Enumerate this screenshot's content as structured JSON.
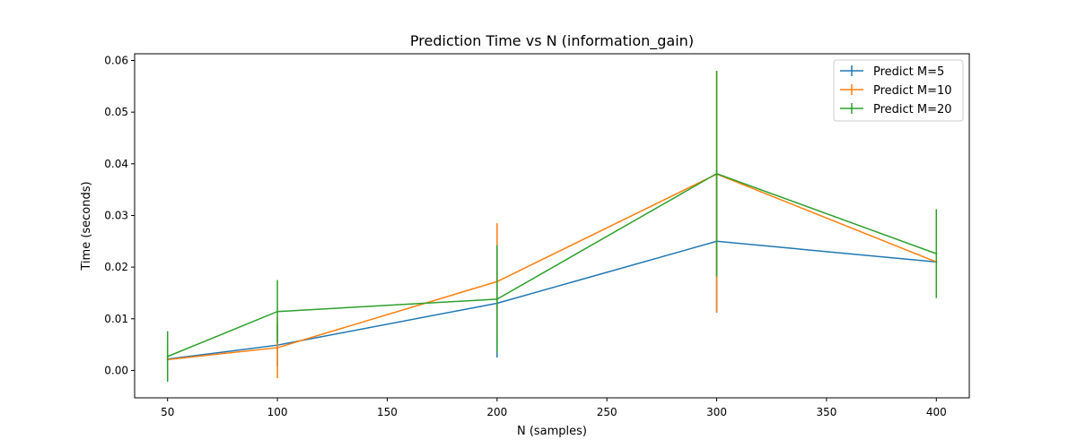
{
  "chart_data": {
    "type": "line",
    "title": "Prediction Time vs N (information_gain)",
    "xlabel": "N (samples)",
    "ylabel": "Time (seconds)",
    "xlim": [
      35,
      415
    ],
    "ylim": [
      -0.0053,
      0.0613
    ],
    "x_ticks": [
      50,
      100,
      150,
      200,
      250,
      300,
      350,
      400
    ],
    "y_ticks": [
      0.0,
      0.01,
      0.02,
      0.03,
      0.04,
      0.05,
      0.06
    ],
    "x_tick_labels": [
      "50",
      "100",
      "150",
      "200",
      "250",
      "300",
      "350",
      "400"
    ],
    "y_tick_labels": [
      "0.00",
      "0.01",
      "0.02",
      "0.03",
      "0.04",
      "0.05",
      "0.06"
    ],
    "grid": false,
    "legend_position": "top-right",
    "x": [
      50,
      100,
      200,
      300,
      400
    ],
    "series": [
      {
        "name": "Predict M=5",
        "color": "#1f77b4",
        "values": [
          0.0022,
          0.0049,
          0.013,
          0.025,
          0.021
        ],
        "err_low": [
          0.0005,
          0.0008,
          0.0025,
          0.0112,
          0.0205
        ],
        "err_high": [
          0.004,
          0.009,
          0.024,
          0.0388,
          0.0215
        ]
      },
      {
        "name": "Predict M=10",
        "color": "#ff7f0e",
        "values": [
          0.0021,
          0.0044,
          0.0172,
          0.038,
          0.021
        ],
        "err_low": [
          -0.0012,
          -0.0015,
          0.006,
          0.0112,
          0.0205
        ],
        "err_high": [
          0.0055,
          0.0103,
          0.0285,
          0.058,
          0.0215
        ]
      },
      {
        "name": "Predict M=20",
        "color": "#2ca02c",
        "values": [
          0.0027,
          0.0114,
          0.0138,
          0.0381,
          0.0226
        ],
        "err_low": [
          -0.0022,
          0.0053,
          0.0035,
          0.0182,
          0.014
        ],
        "err_high": [
          0.0076,
          0.0175,
          0.0242,
          0.058,
          0.0312
        ]
      }
    ]
  }
}
